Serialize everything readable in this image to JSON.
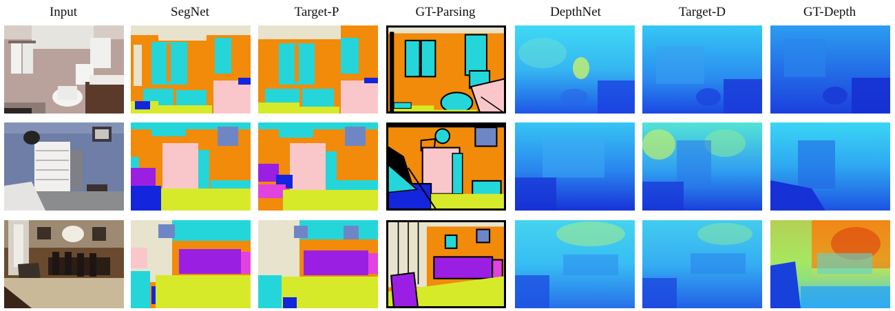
{
  "columns": [
    "Input",
    "SegNet",
    "Target-P",
    "GT-Parsing",
    "DepthNet",
    "Target-D",
    "GT-Depth"
  ],
  "rows": [
    {
      "scene": "bathroom"
    },
    {
      "scene": "bedroom"
    },
    {
      "scene": "dining-room"
    }
  ],
  "palette": {
    "wall": "#F28A0A",
    "ceiling": "#E7E3CD",
    "cabinet": "#24D6D9",
    "object": "#F9C7CA",
    "floor": "#D6EA2A",
    "chair": "#9A1FE3",
    "blue": "#1325DD",
    "picture": "#6F86C6",
    "magenta": "#E242E0"
  }
}
